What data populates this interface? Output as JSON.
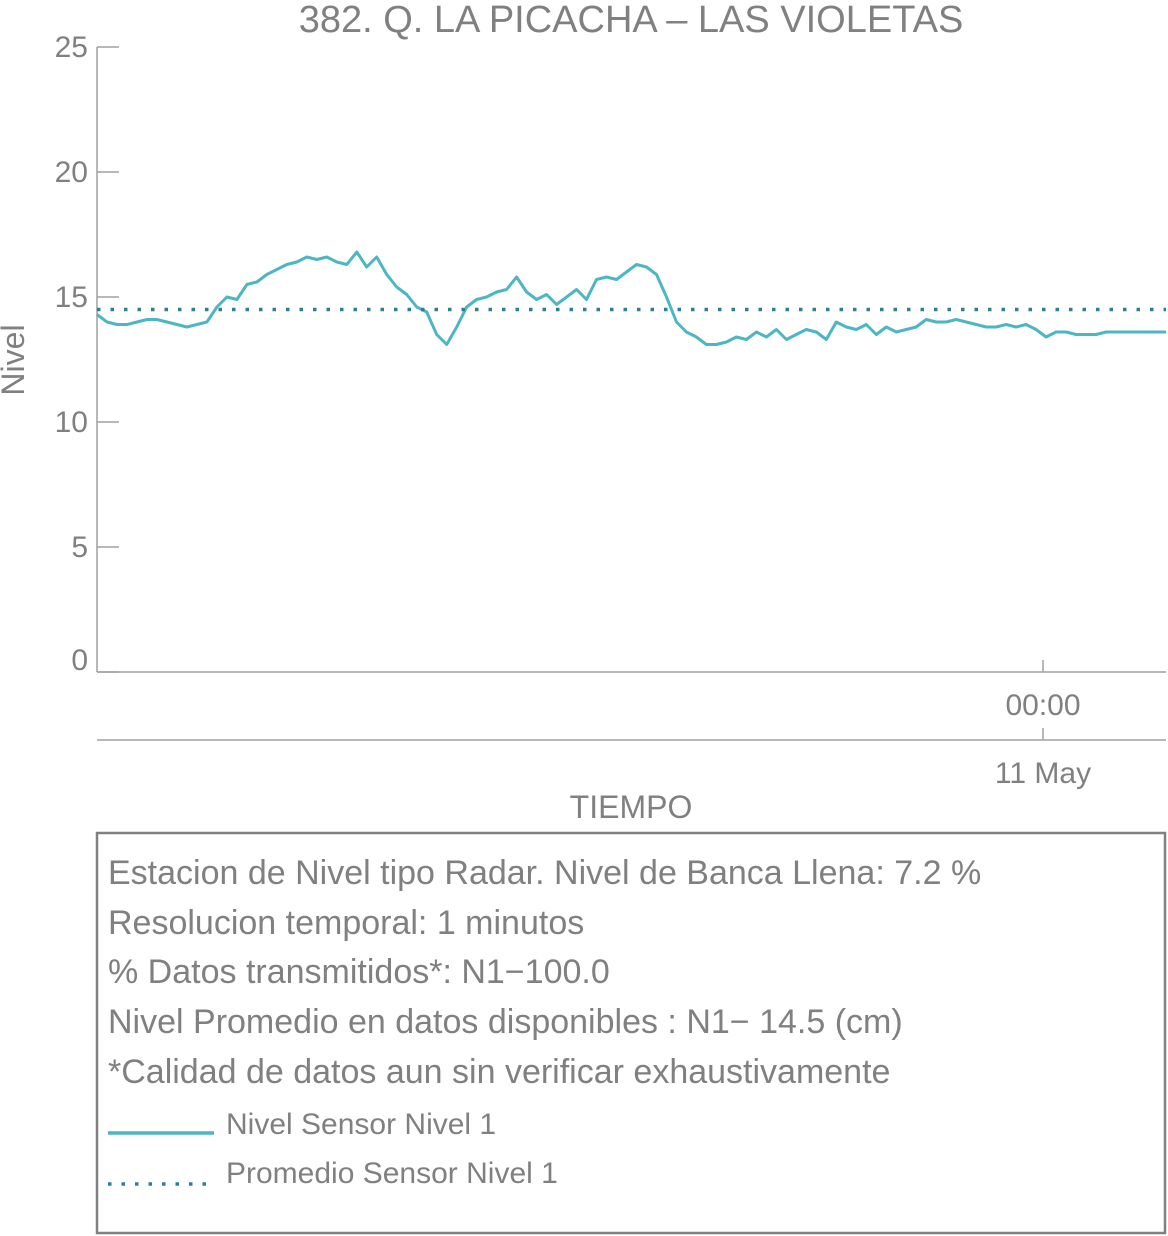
{
  "chart_data": {
    "type": "line",
    "title": "382. Q. LA PICACHA – LAS VIOLETAS",
    "xlabel": "TIEMPO",
    "ylabel": "Nivel",
    "ylim": [
      0,
      25
    ],
    "yticks": [
      "0",
      "5",
      "10",
      "15",
      "20",
      "25"
    ],
    "xticks": [
      {
        "time": "00:00",
        "date": "11 May"
      }
    ],
    "grid": false,
    "series": [
      {
        "name": "Nivel Sensor Nivel 1",
        "color": "#4db6c3",
        "style": "solid",
        "x_minutes": [
          0,
          30,
          60,
          90,
          120,
          150,
          180,
          210,
          240,
          270,
          300,
          330,
          360,
          390,
          420,
          450,
          480,
          510,
          540,
          570,
          600,
          630,
          660,
          690,
          720,
          750,
          780,
          810,
          840,
          870,
          900,
          930,
          960,
          990,
          1020,
          1050,
          1080,
          1110,
          1140,
          1170,
          1200,
          1230,
          1260,
          1290,
          1320,
          1350,
          1380,
          1410,
          1440,
          1470,
          1500,
          1530,
          1560,
          1590,
          1620,
          1650,
          1680,
          1710,
          1740,
          1770,
          1800,
          1830,
          1860,
          1890,
          1920,
          1950,
          1980,
          2010,
          2040,
          2070,
          2100,
          2130,
          2160,
          2190,
          2220,
          2250,
          2280,
          2310,
          2340,
          2370,
          2400,
          2430,
          2460,
          2490,
          2520,
          2550,
          2580,
          2610,
          2640,
          2670,
          2700,
          2730,
          2760,
          2790,
          2820,
          2850,
          2880,
          2910,
          2940,
          2970,
          3000,
          3030,
          3060,
          3090,
          3120,
          3150,
          3180,
          3210
        ],
        "values": [
          14.3,
          14.0,
          13.9,
          13.9,
          14.0,
          14.1,
          14.1,
          14.0,
          13.9,
          13.8,
          13.9,
          14.0,
          14.6,
          15.0,
          14.9,
          15.5,
          15.6,
          15.9,
          16.1,
          16.3,
          16.4,
          16.6,
          16.5,
          16.6,
          16.4,
          16.3,
          16.8,
          16.2,
          16.6,
          15.9,
          15.4,
          15.1,
          14.6,
          14.4,
          13.5,
          13.1,
          13.8,
          14.6,
          14.9,
          15.0,
          15.2,
          15.3,
          15.8,
          15.2,
          14.9,
          15.1,
          14.7,
          15.0,
          15.3,
          14.9,
          15.7,
          15.8,
          15.7,
          16.0,
          16.3,
          16.2,
          15.9,
          15.0,
          14.0,
          13.6,
          13.4,
          13.1,
          13.1,
          13.2,
          13.4,
          13.3,
          13.6,
          13.4,
          13.7,
          13.3,
          13.5,
          13.7,
          13.6,
          13.3,
          14.0,
          13.8,
          13.7,
          13.9,
          13.5,
          13.8,
          13.6,
          13.7,
          13.8,
          14.1,
          14.0,
          14.0,
          14.1,
          14.0,
          13.9,
          13.8,
          13.8,
          13.9,
          13.8,
          13.9,
          13.7,
          13.4,
          13.6,
          13.6,
          13.5,
          13.5,
          13.5,
          13.6,
          13.6,
          13.6,
          13.6,
          13.6,
          13.6,
          13.6
        ]
      },
      {
        "name": "Promedio Sensor Nivel 1",
        "color": "#2f7f92",
        "style": "dotted",
        "x_minutes": [
          0,
          3210
        ],
        "values": [
          14.5,
          14.5
        ]
      }
    ]
  },
  "info_box": {
    "lines": [
      "Estacion de Nivel tipo Radar. Nivel de Banca Llena:  7.2 %",
      "Resolucion temporal: 1 minutos",
      "% Datos transmitidos*: N1−100.0",
      "Nivel Promedio en datos disponibles : N1− 14.5 (cm)",
      "*Calidad de datos aun sin verificar exhaustivamente"
    ],
    "legend": [
      {
        "label": "Nivel Sensor Nivel 1",
        "style": "solid",
        "color": "#4db6c3"
      },
      {
        "label": "Promedio Sensor Nivel 1",
        "style": "dotted",
        "color": "#2f7f92"
      }
    ]
  }
}
